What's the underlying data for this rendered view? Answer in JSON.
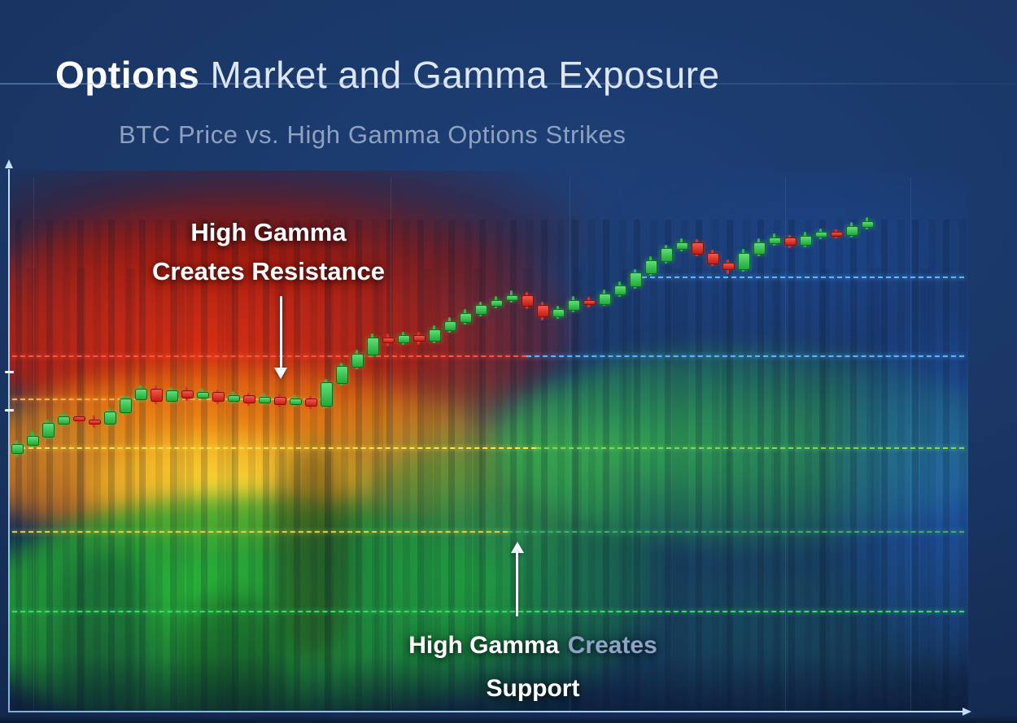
{
  "title": {
    "bold": "Options",
    "rest": " Market and Gamma Exposure"
  },
  "subtitle": "BTC Price vs. High Gamma Options Strikes",
  "annotations": {
    "resistance": {
      "line1": "High Gamma",
      "line2": "Creates Resistance"
    },
    "support": {
      "white1": "High Gamma",
      "muted": "Creates",
      "line2": "Support"
    }
  },
  "colors": {
    "background": "#16305c",
    "axis": "#9ecbe8",
    "candle_up": "#35d04f",
    "candle_down": "#ef3b2d",
    "annotation_text": "#ffffff",
    "annotation_muted": "#8fa3c8",
    "subtitle_text": "#8ea2c0",
    "zone_resistance": "#d42a10",
    "zone_transition": "#ffc825",
    "zone_support": "#2dc337",
    "zone_low_gamma": "#2f78d6"
  },
  "chart_data": {
    "type": "candlestick",
    "title": "BTC Price vs. High Gamma Options Strikes",
    "xlabel": "",
    "ylabel": "",
    "axis_labels_visible": false,
    "x_units": "time (axis unlabeled)",
    "y_units": "relative BTC price 0-100 (axis unlabeled)",
    "ylim": [
      0,
      100
    ],
    "candles_ohlc": [
      [
        48.0,
        50.3,
        47.2,
        49.6
      ],
      [
        49.6,
        51.9,
        48.9,
        51.1
      ],
      [
        51.1,
        54.1,
        50.5,
        53.4
      ],
      [
        53.4,
        55.4,
        52.8,
        54.6
      ],
      [
        54.6,
        55.3,
        53.3,
        54.1
      ],
      [
        54.1,
        54.8,
        52.6,
        53.4
      ],
      [
        53.4,
        56.3,
        52.9,
        55.6
      ],
      [
        55.6,
        58.6,
        55.0,
        57.9
      ],
      [
        57.9,
        60.5,
        57.3,
        59.7
      ],
      [
        59.7,
        60.3,
        56.9,
        57.6
      ],
      [
        57.6,
        60.1,
        57.0,
        59.4
      ],
      [
        59.4,
        60.0,
        57.5,
        58.2
      ],
      [
        58.2,
        59.9,
        57.6,
        59.1
      ],
      [
        59.1,
        59.6,
        56.9,
        57.6
      ],
      [
        57.6,
        59.3,
        57.0,
        58.5
      ],
      [
        58.5,
        59.0,
        56.6,
        57.3
      ],
      [
        57.3,
        59.0,
        56.8,
        58.2
      ],
      [
        58.2,
        58.8,
        56.3,
        57.0
      ],
      [
        57.0,
        58.7,
        56.4,
        57.9
      ],
      [
        57.9,
        58.4,
        56.0,
        56.7
      ],
      [
        56.7,
        61.6,
        56.2,
        60.9
      ],
      [
        60.9,
        64.6,
        60.3,
        63.9
      ],
      [
        63.9,
        67.0,
        63.3,
        66.2
      ],
      [
        66.2,
        70.0,
        65.6,
        69.2
      ],
      [
        69.2,
        69.9,
        67.6,
        68.4
      ],
      [
        68.4,
        70.3,
        67.8,
        69.6
      ],
      [
        69.6,
        70.2,
        67.9,
        68.7
      ],
      [
        68.7,
        71.4,
        68.1,
        70.7
      ],
      [
        70.7,
        72.9,
        70.1,
        72.2
      ],
      [
        72.2,
        74.4,
        71.6,
        73.7
      ],
      [
        73.7,
        75.9,
        73.1,
        75.2
      ],
      [
        75.2,
        76.9,
        74.6,
        76.2
      ],
      [
        76.2,
        77.9,
        75.6,
        77.1
      ],
      [
        77.1,
        77.7,
        74.4,
        75.2
      ],
      [
        75.2,
        75.8,
        72.4,
        73.2
      ],
      [
        73.2,
        75.1,
        72.6,
        74.4
      ],
      [
        74.4,
        76.9,
        73.8,
        76.2
      ],
      [
        76.2,
        76.8,
        74.8,
        75.6
      ],
      [
        75.6,
        78.1,
        75.0,
        77.4
      ],
      [
        77.4,
        79.6,
        76.8,
        78.9
      ],
      [
        78.9,
        81.9,
        78.3,
        81.2
      ],
      [
        81.2,
        84.2,
        80.6,
        83.5
      ],
      [
        83.5,
        86.4,
        82.9,
        85.7
      ],
      [
        85.7,
        87.5,
        85.1,
        86.8
      ],
      [
        86.8,
        87.4,
        84.2,
        84.9
      ],
      [
        84.9,
        85.5,
        82.4,
        83.1
      ],
      [
        83.1,
        83.7,
        80.9,
        82.0
      ],
      [
        82.0,
        85.6,
        81.4,
        84.9
      ],
      [
        84.9,
        87.5,
        84.3,
        86.8
      ],
      [
        86.8,
        88.4,
        86.2,
        87.7
      ],
      [
        87.7,
        88.2,
        85.8,
        86.5
      ],
      [
        86.5,
        88.7,
        85.9,
        88.0
      ],
      [
        88.0,
        89.4,
        87.4,
        88.7
      ],
      [
        88.7,
        89.2,
        87.5,
        88.3
      ],
      [
        88.3,
        90.5,
        87.7,
        89.8
      ],
      [
        89.8,
        91.5,
        89.2,
        90.7
      ]
    ],
    "gamma_strike_levels": [
      {
        "p": 80.5,
        "x1_pct": 66.0,
        "x2_pct": 99.6,
        "color": "#57b6ff",
        "role": "call strike above price (upper right)"
      },
      {
        "p": 65.9,
        "x1_pct": 0.4,
        "x2_pct": 54.0,
        "color": "#ff5040",
        "role": "high-gamma resistance strike"
      },
      {
        "p": 65.9,
        "x1_pct": 54.0,
        "x2_pct": 99.6,
        "color": "#57b6ff",
        "role": "same strike right of price crossover"
      },
      {
        "p": 57.9,
        "x1_pct": 0.4,
        "x2_pct": 33.0,
        "color": "#ffb347",
        "role": "near-money strike (left)"
      },
      {
        "p": 48.9,
        "x1_pct": 0.4,
        "x2_pct": 55.0,
        "color": "#ffe24a",
        "role": "mid strike (left, yellow zone)"
      },
      {
        "p": 48.9,
        "x1_pct": 55.0,
        "x2_pct": 99.6,
        "color": "#7ed957",
        "role": "mid strike (right, green zone)"
      },
      {
        "p": 33.5,
        "x1_pct": 0.4,
        "x2_pct": 52.0,
        "color": "#ddcf45",
        "role": "lower strike (left)"
      },
      {
        "p": 33.5,
        "x1_pct": 52.0,
        "x2_pct": 99.6,
        "color": "#3fae6a",
        "role": "lower strike (right)"
      },
      {
        "p": 18.8,
        "x1_pct": 0.4,
        "x2_pct": 99.6,
        "color": "#35dc65",
        "role": "high-gamma support strike"
      }
    ],
    "grid_x_pct": [
      2.6,
      39.8,
      58.5,
      80.9,
      94.0
    ],
    "y_axis_ticks_p": [
      63,
      56
    ],
    "heatmap_zones": [
      {
        "zone": "high gamma resistance",
        "color": "#d42a10",
        "location": "above price path, upper-left region"
      },
      {
        "zone": "transition gamma",
        "color": "#ffb31a",
        "location": "mid-left orange/yellow band"
      },
      {
        "zone": "high gamma support",
        "color": "#2dc337",
        "location": "below price path, full width, brightest lower-left"
      },
      {
        "zone": "low gamma / calm",
        "color": "#2f78d6",
        "location": "upper-right and far-right blue region"
      }
    ]
  }
}
